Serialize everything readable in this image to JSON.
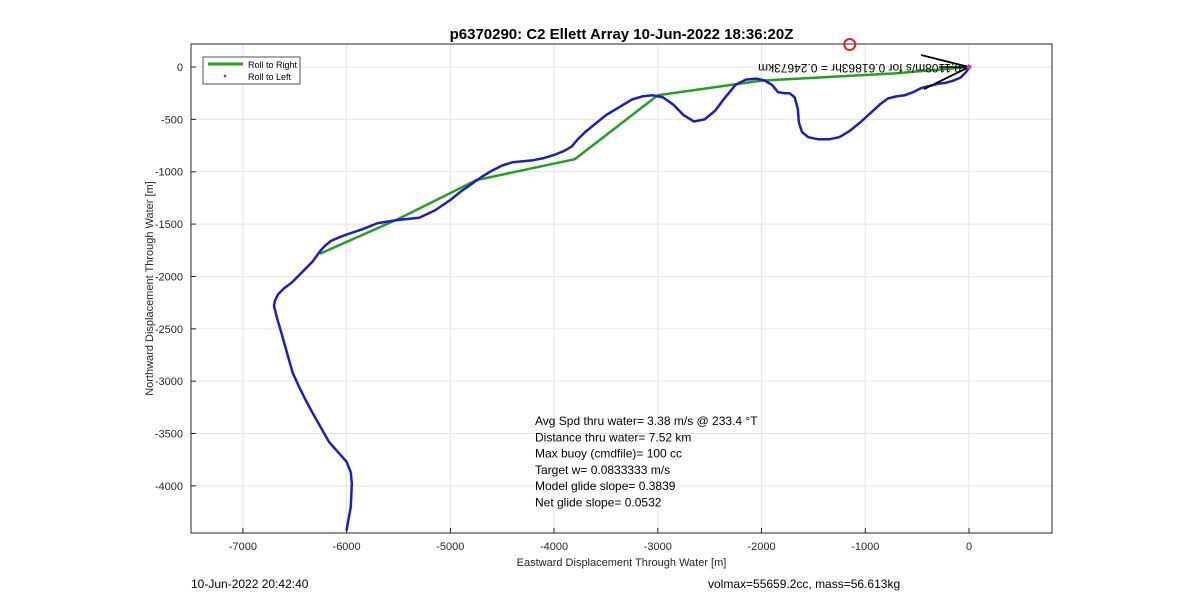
{
  "chart_data": {
    "type": "line",
    "title": "p6370290: C2 Ellett Array 10-Jun-2022 18:36:20Z",
    "xlabel": "Eastward Displacement Through Water [m]",
    "ylabel": "Northward Displacement Through Water [m]",
    "xlim": [
      -7500,
      800
    ],
    "ylim": [
      -4450,
      220
    ],
    "grid": true,
    "legend_placement": "top-left",
    "x_ticks": [
      -7000,
      -6000,
      -5000,
      -4000,
      -3000,
      -2000,
      -1000,
      0
    ],
    "y_ticks": [
      0,
      -500,
      -1000,
      -1500,
      -2000,
      -2500,
      -3000,
      -3500,
      -4000
    ],
    "series": [
      {
        "name": "Roll to Right",
        "style": "line",
        "color": "#22a020",
        "x": [
          0,
          -700,
          -2000,
          -3000,
          -3800,
          -4750,
          -5500,
          -6250
        ],
        "y": [
          0,
          -60,
          -130,
          -270,
          -880,
          -1080,
          -1450,
          -1780
        ]
      },
      {
        "name": "Roll to Left",
        "style": "marker",
        "color": "#dd2222",
        "x": [],
        "y": []
      },
      {
        "name": "",
        "style": "line",
        "color": "#1e1ebe",
        "x": [
          -6000,
          -5960,
          -5950,
          -5960,
          -6000,
          -6080,
          -6170,
          -6250,
          -6330,
          -6400,
          -6460,
          -6520,
          -6560,
          -6600,
          -6640,
          -6670,
          -6690,
          -6700,
          -6690,
          -6660,
          -6600,
          -6530,
          -6470,
          -6400,
          -6330,
          -6280,
          -6240,
          -6200,
          -6150,
          -6080,
          -6000,
          -5850,
          -5700,
          -5500,
          -5300,
          -5150,
          -5000,
          -4900,
          -4800,
          -4700,
          -4600,
          -4500,
          -4400,
          -4300,
          -4200,
          -4100,
          -4000,
          -3900,
          -3830,
          -3780,
          -3700,
          -3600,
          -3500,
          -3350,
          -3250,
          -3150,
          -3050,
          -2950,
          -2850,
          -2750,
          -2650,
          -2550,
          -2450,
          -2350,
          -2250,
          -2150,
          -2050,
          -1970,
          -1900,
          -1840,
          -1780,
          -1730,
          -1680,
          -1650,
          -1640,
          -1610,
          -1550,
          -1450,
          -1350,
          -1250,
          -1150,
          -1050,
          -950,
          -850,
          -780,
          -700,
          -620,
          -540,
          -460,
          -380,
          -300,
          -220,
          -150,
          -80,
          -40,
          -15,
          0
        ],
        "y": [
          -4420,
          -4200,
          -3980,
          -3870,
          -3770,
          -3680,
          -3580,
          -3440,
          -3300,
          -3170,
          -3050,
          -2920,
          -2780,
          -2640,
          -2500,
          -2400,
          -2320,
          -2280,
          -2230,
          -2170,
          -2110,
          -2060,
          -2000,
          -1930,
          -1860,
          -1790,
          -1740,
          -1700,
          -1660,
          -1630,
          -1600,
          -1550,
          -1490,
          -1460,
          -1440,
          -1370,
          -1270,
          -1190,
          -1120,
          -1050,
          -990,
          -940,
          -910,
          -900,
          -890,
          -870,
          -840,
          -800,
          -760,
          -700,
          -620,
          -540,
          -460,
          -370,
          -310,
          -280,
          -270,
          -290,
          -360,
          -460,
          -520,
          -500,
          -420,
          -290,
          -170,
          -120,
          -110,
          -130,
          -170,
          -240,
          -250,
          -250,
          -290,
          -400,
          -530,
          -620,
          -670,
          -690,
          -690,
          -670,
          -610,
          -530,
          -440,
          -350,
          -300,
          -280,
          -270,
          -240,
          -200,
          -180,
          -160,
          -150,
          -130,
          -100,
          -60,
          -30,
          0
        ]
      }
    ],
    "annotations": [
      "Avg Spd thru water=  3.38 m/s @ 233.4 °T",
      "Distance thru water=  7.52 km",
      "Max buoy (cmdfile)= 100 cc",
      "Target w= 0.0833333 m/s",
      "Model glide slope= 0.3839",
      "Net glide slope= 0.0532"
    ],
    "arrow_label": "0.1108m/s for 0.61863hr = 0.24673km",
    "start_marker": {
      "x": -1150,
      "y": 215,
      "color": "#dd2222",
      "shape": "open-circle"
    }
  },
  "footer": {
    "left": "10-Jun-2022 20:42:40",
    "right": "volmax=55659.2cc, mass=56.613kg"
  }
}
